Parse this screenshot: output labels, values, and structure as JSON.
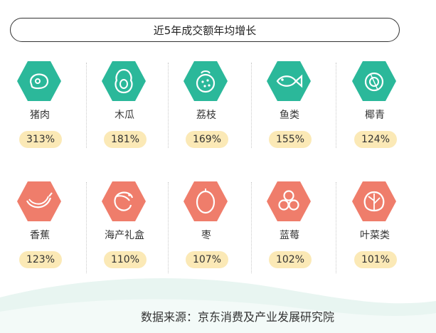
{
  "title": "近5年成交额年均增长",
  "colors": {
    "green": "#2bb89a",
    "red": "#ef7d6b",
    "badge": "#fbe9b6"
  },
  "row1": [
    {
      "name": "猪肉",
      "value": "313%",
      "icon": "meat-icon"
    },
    {
      "name": "木瓜",
      "value": "181%",
      "icon": "papaya-icon"
    },
    {
      "name": "荔枝",
      "value": "169%",
      "icon": "lychee-icon"
    },
    {
      "name": "鱼类",
      "value": "155%",
      "icon": "fish-icon"
    },
    {
      "name": "椰青",
      "value": "124%",
      "icon": "coconut-icon"
    }
  ],
  "row2": [
    {
      "name": "香蕉",
      "value": "123%",
      "icon": "banana-icon"
    },
    {
      "name": "海产礼盒",
      "value": "110%",
      "icon": "shrimp-icon"
    },
    {
      "name": "枣",
      "value": "107%",
      "icon": "jujube-icon"
    },
    {
      "name": "蓝莓",
      "value": "102%",
      "icon": "blueberry-icon"
    },
    {
      "name": "叶菜类",
      "value": "101%",
      "icon": "leafy-vegetable-icon"
    }
  ],
  "source": "数据来源：京东消费及产业发展研究院"
}
